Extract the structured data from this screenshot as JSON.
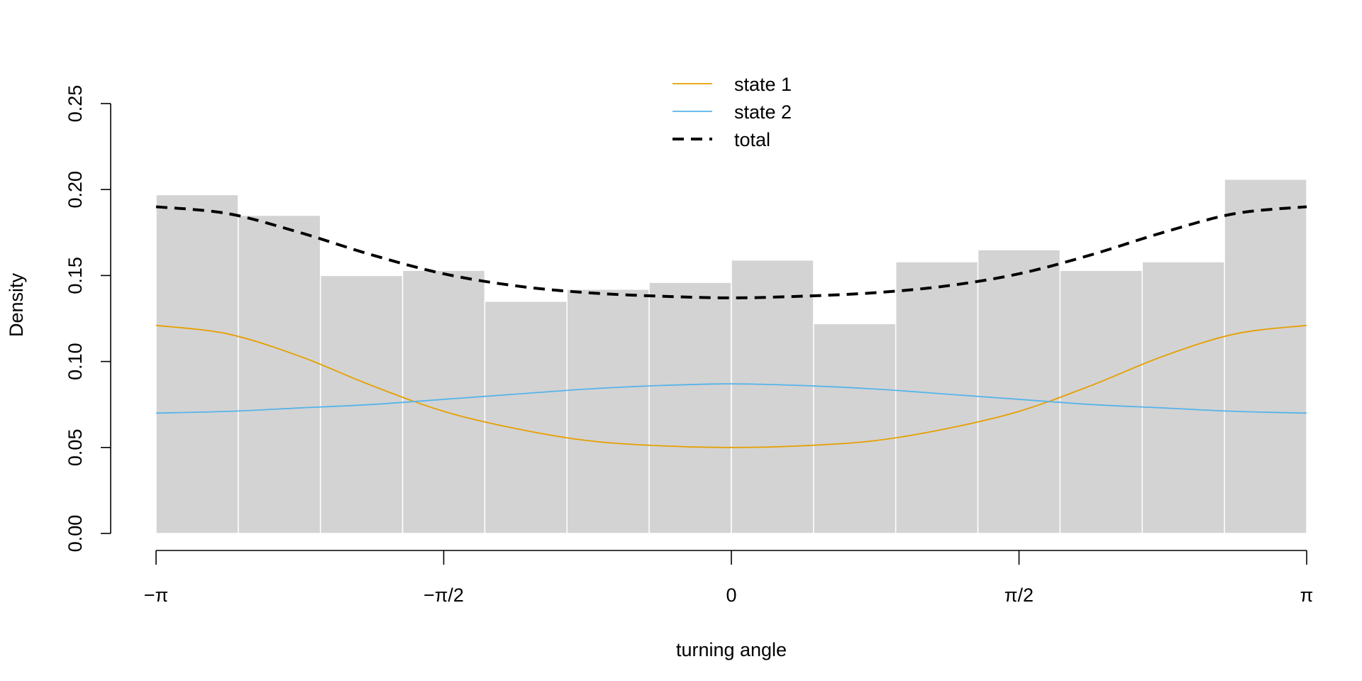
{
  "chart_data": {
    "type": "histogram",
    "xlabel": "turning angle",
    "ylabel": "Density",
    "xlim": [
      -3.14159,
      3.14159
    ],
    "ylim": [
      0,
      0.25
    ],
    "x_ticks": [
      {
        "value": -3.14159,
        "label": "−π"
      },
      {
        "value": -1.5708,
        "label": "−π/2"
      },
      {
        "value": 0,
        "label": "0"
      },
      {
        "value": 1.5708,
        "label": "π/2"
      },
      {
        "value": 3.14159,
        "label": "π"
      }
    ],
    "y_ticks": [
      {
        "value": 0.0,
        "label": "0.00"
      },
      {
        "value": 0.05,
        "label": "0.05"
      },
      {
        "value": 0.1,
        "label": "0.10"
      },
      {
        "value": 0.15,
        "label": "0.15"
      },
      {
        "value": 0.2,
        "label": "0.20"
      },
      {
        "value": 0.25,
        "label": "0.25"
      }
    ],
    "bins": {
      "edges": [
        -3.14159,
        -2.69279,
        -2.24399,
        -1.79519,
        -1.34639,
        -0.8976,
        -0.4488,
        0.0,
        0.4488,
        0.8976,
        1.34639,
        1.79519,
        2.24399,
        2.69279,
        3.14159
      ],
      "densities": [
        0.197,
        0.185,
        0.15,
        0.153,
        0.135,
        0.142,
        0.146,
        0.159,
        0.122,
        0.158,
        0.165,
        0.153,
        0.158,
        0.206
      ],
      "color": "#d3d3d3"
    },
    "series": [
      {
        "name": "state 1",
        "color": "#E69F00",
        "style": "solid",
        "x": [
          -3.1416,
          -2.7489,
          -2.3562,
          -1.9635,
          -1.5708,
          -1.1781,
          -0.7854,
          -0.3927,
          0.0,
          0.3927,
          0.7854,
          1.1781,
          1.5708,
          1.9635,
          2.3562,
          2.7489,
          3.1416
        ],
        "values": [
          0.121,
          0.116,
          0.103,
          0.086,
          0.071,
          0.061,
          0.054,
          0.051,
          0.05,
          0.051,
          0.054,
          0.061,
          0.071,
          0.086,
          0.103,
          0.116,
          0.121
        ]
      },
      {
        "name": "state 2",
        "color": "#56B4E9",
        "style": "solid",
        "x": [
          -3.1416,
          -2.7489,
          -2.3562,
          -1.9635,
          -1.5708,
          -1.1781,
          -0.7854,
          -0.3927,
          0.0,
          0.3927,
          0.7854,
          1.1781,
          1.5708,
          1.9635,
          2.3562,
          2.7489,
          3.1416
        ],
        "values": [
          0.07,
          0.071,
          0.073,
          0.075,
          0.078,
          0.081,
          0.084,
          0.086,
          0.087,
          0.086,
          0.084,
          0.081,
          0.078,
          0.075,
          0.073,
          0.071,
          0.07
        ]
      },
      {
        "name": "total",
        "color": "#000000",
        "style": "dashed",
        "x": [
          -3.1416,
          -2.7489,
          -2.3562,
          -1.9635,
          -1.5708,
          -1.1781,
          -0.7854,
          -0.3927,
          0.0,
          0.3927,
          0.7854,
          1.1781,
          1.5708,
          1.9635,
          2.3562,
          2.7489,
          3.1416
        ],
        "values": [
          0.19,
          0.186,
          0.175,
          0.162,
          0.151,
          0.144,
          0.14,
          0.138,
          0.137,
          0.138,
          0.14,
          0.144,
          0.151,
          0.162,
          0.175,
          0.186,
          0.19
        ]
      }
    ],
    "legend": {
      "position": "top-center"
    }
  }
}
